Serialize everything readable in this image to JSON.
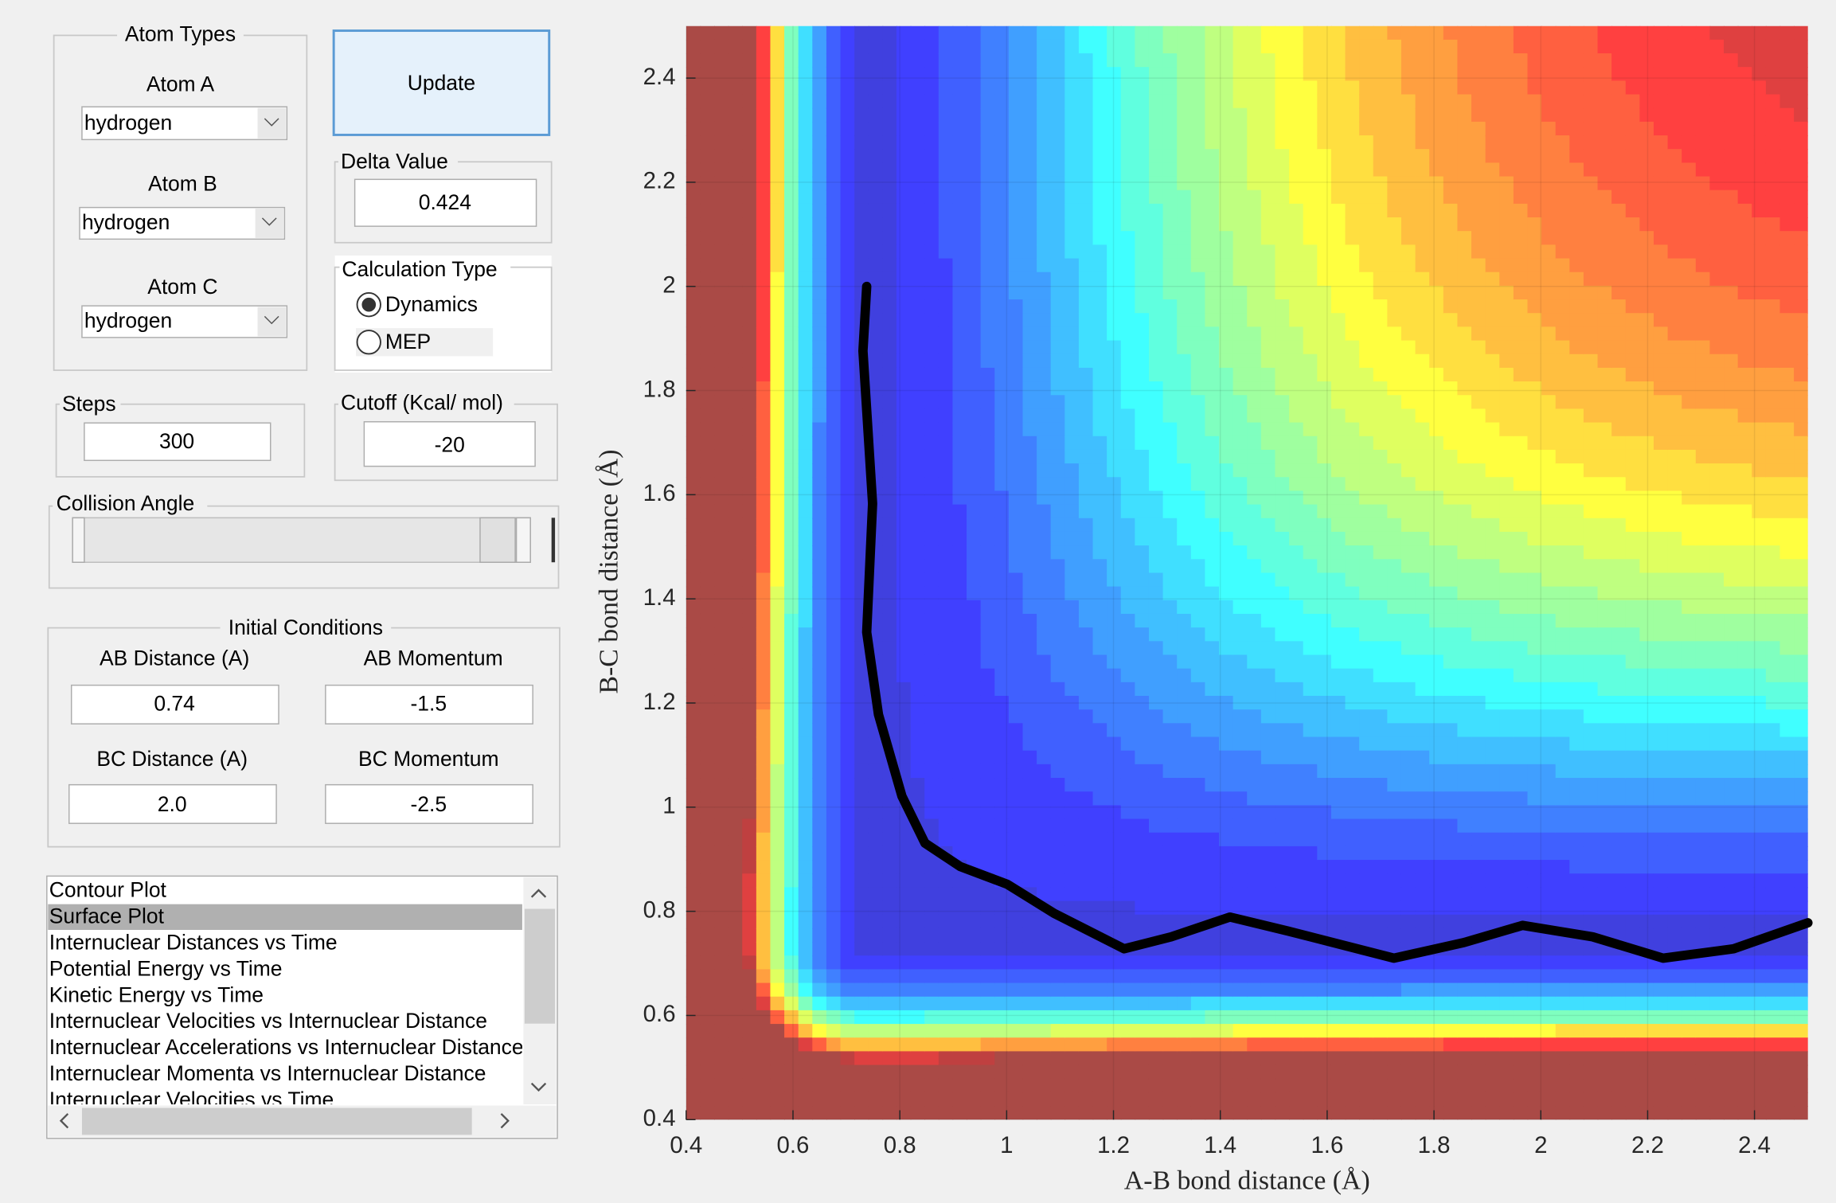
{
  "panel": {
    "atom_types": {
      "title": "Atom Types",
      "atom_a_label": "Atom A",
      "atom_a": "hydrogen",
      "atom_b_label": "Atom B",
      "atom_b": "hydrogen",
      "atom_c_label": "Atom C",
      "atom_c": "hydrogen"
    },
    "update_button": "Update",
    "delta": {
      "title": "Delta Value",
      "value": "0.424"
    },
    "calc_type": {
      "title": "Calculation Type",
      "dynamics": "Dynamics",
      "mep": "MEP"
    },
    "steps": {
      "title": "Steps",
      "value": "300"
    },
    "cutoff": {
      "title": "Cutoff (Kcal/ mol)",
      "value": "-20"
    },
    "collision_angle": {
      "title": "Collision Angle"
    },
    "initial": {
      "title": "Initial Conditions",
      "ab_distance_label": "AB Distance (A)",
      "ab_distance": "0.74",
      "ab_momentum_label": "AB Momentum",
      "ab_momentum": "-1.5",
      "bc_distance_label": "BC Distance (A)",
      "bc_distance": "2.0",
      "bc_momentum_label": "BC Momentum",
      "bc_momentum": "-2.5"
    },
    "list": {
      "items": [
        "Contour Plot",
        "Surface Plot",
        "Internuclear Distances vs Time",
        "Potential Energy vs Time",
        "Kinetic Energy vs Time",
        "Internuclear Velocities vs Internuclear Distance",
        "Internuclear Accelerations vs Internuclear Distance",
        "Internuclear Momenta vs Internuclear Distance",
        "Internuclear Velocities vs Time"
      ]
    }
  },
  "chart_data": {
    "type": "contour",
    "x_label": "A-B bond distance (Å)",
    "y_label": "B-C bond distance (Å)",
    "xlim": [
      0.4,
      2.5
    ],
    "ylim": [
      0.4,
      2.5
    ],
    "xticks": [
      0.4,
      0.6,
      0.8,
      1,
      1.2,
      1.4,
      1.6,
      1.8,
      2,
      2.2,
      2.4
    ],
    "yticks": [
      0.4,
      0.6,
      0.8,
      1,
      1.2,
      1.4,
      1.6,
      1.8,
      2,
      2.2,
      2.4
    ],
    "series": [
      {
        "color": "#000000",
        "x": [
          0.738,
          0.731,
          0.749,
          0.738,
          0.76,
          0.804,
          0.847,
          0.913,
          1.001,
          1.089,
          1.22,
          1.308,
          1.418,
          1.527,
          1.725,
          1.856,
          1.966,
          2.097,
          2.229,
          2.361,
          2.5
        ],
        "values": [
          2.0,
          1.876,
          1.583,
          1.336,
          1.178,
          1.021,
          0.931,
          0.886,
          0.852,
          0.796,
          0.728,
          0.751,
          0.789,
          0.762,
          0.71,
          0.74,
          0.773,
          0.751,
          0.71,
          0.728,
          0.778
        ]
      }
    ]
  }
}
